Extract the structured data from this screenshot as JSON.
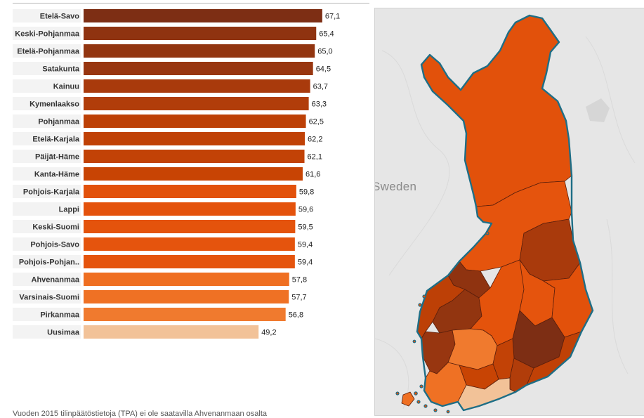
{
  "map": {
    "country_label": "Sweden"
  },
  "footnote": "Vuoden 2015 tilinpäätöstietoja (TPA) ei ole saatavilla Ahvenanmaan osalta",
  "chart_data": {
    "type": "bar",
    "orientation": "horizontal",
    "categories": [
      "Etelä-Savo",
      "Keski-Pohjanmaa",
      "Etelä-Pohjanmaa",
      "Satakunta",
      "Kainuu",
      "Kymenlaakso",
      "Pohjanmaa",
      "Etelä-Karjala",
      "Päijät-Häme",
      "Kanta-Häme",
      "Pohjois-Karjala",
      "Lappi",
      "Keski-Suomi",
      "Pohjois-Savo",
      "Pohjois-Pohjan..",
      "Ahvenanmaa",
      "Varsinais-Suomi",
      "Pirkanmaa",
      "Uusimaa"
    ],
    "values": [
      67.1,
      65.4,
      65.0,
      64.5,
      63.7,
      63.3,
      62.5,
      62.2,
      62.1,
      61.6,
      59.8,
      59.6,
      59.5,
      59.4,
      59.4,
      57.8,
      57.7,
      56.8,
      49.2
    ],
    "value_labels": [
      "67,1",
      "65,4",
      "65,0",
      "64,5",
      "63,7",
      "63,3",
      "62,5",
      "62,2",
      "62,1",
      "61,6",
      "59,8",
      "59,6",
      "59,5",
      "59,4",
      "59,4",
      "57,8",
      "57,7",
      "56,8",
      "49,2"
    ],
    "bar_colors": [
      "#7d2e14",
      "#8f3310",
      "#923510",
      "#983610",
      "#a93a0c",
      "#b13d0a",
      "#bd4006",
      "#c04106",
      "#c24206",
      "#c84404",
      "#e2510b",
      "#e4520c",
      "#e4530c",
      "#e5540d",
      "#e5540d",
      "#ef6f22",
      "#ef7124",
      "#f07a2e",
      "#f2c298"
    ],
    "title": "",
    "xlabel": "",
    "ylabel": "",
    "xlim": [
      0,
      70
    ],
    "grid": false,
    "legend": "none"
  }
}
